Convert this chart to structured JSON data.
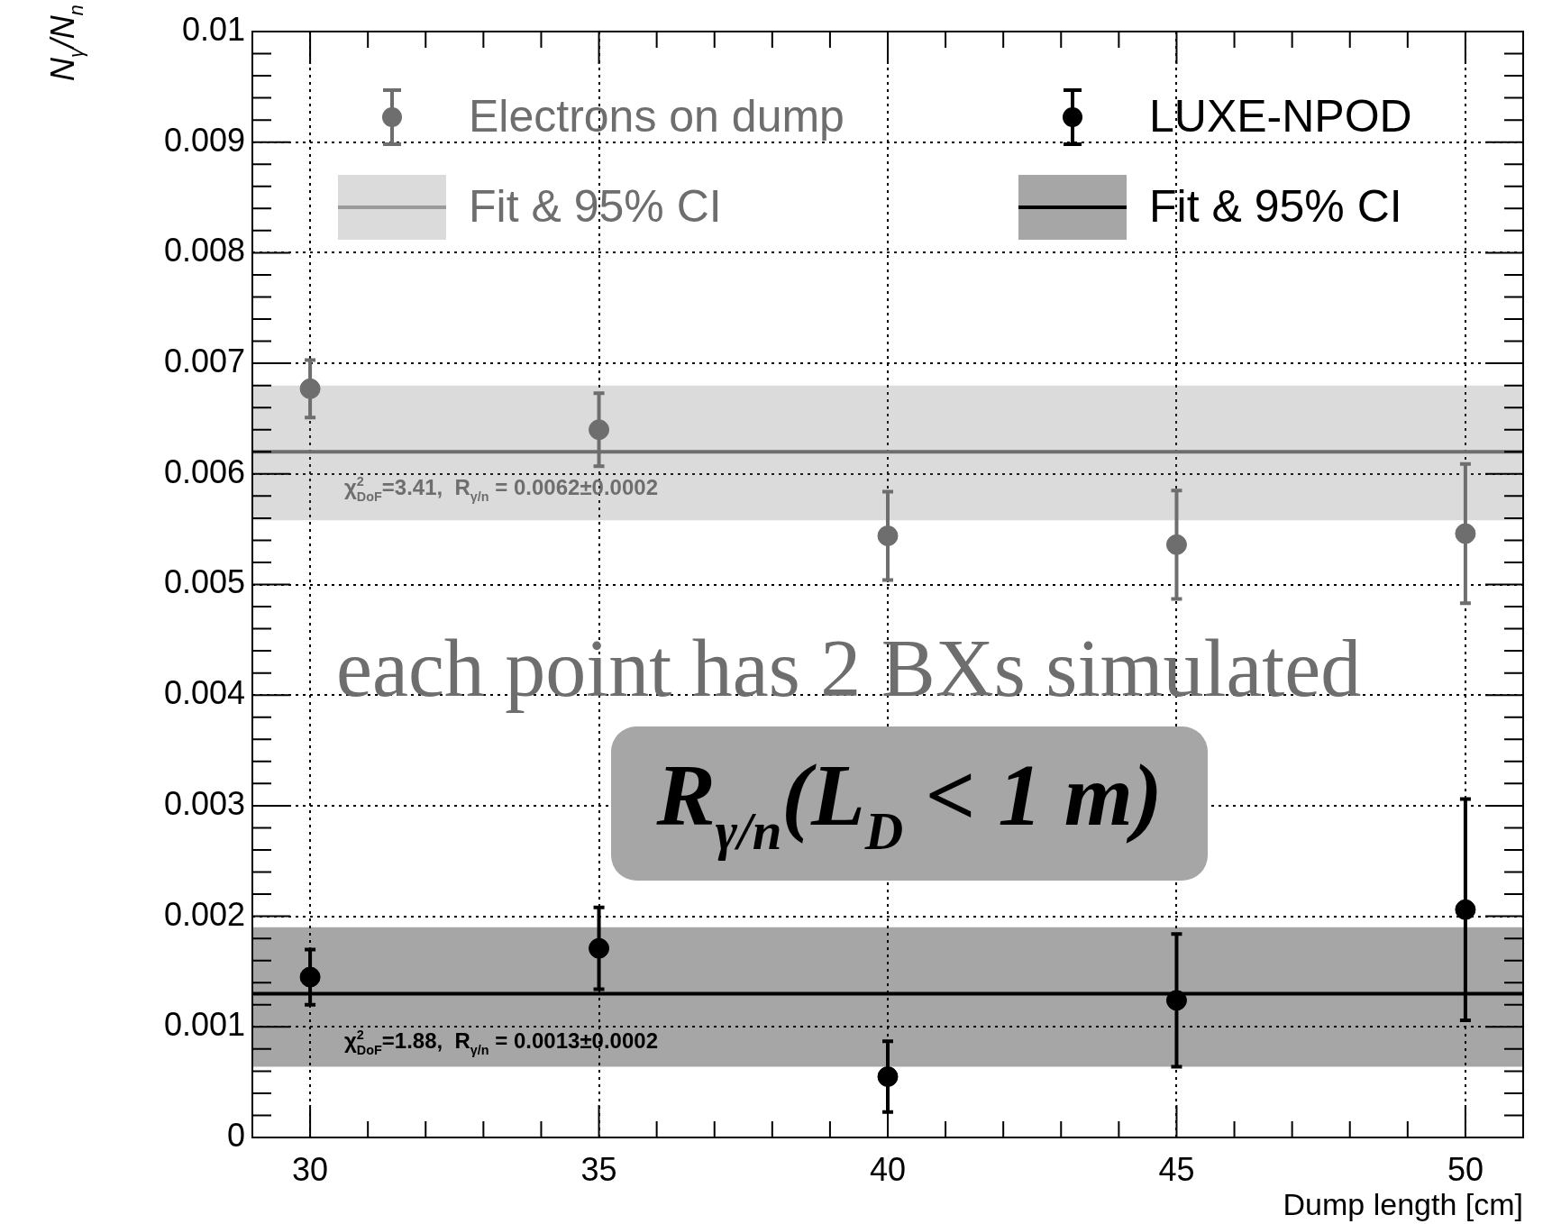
{
  "chart_data": {
    "type": "scatter",
    "xlabel": "Dump length [cm]",
    "ylabel": "N$_{γ}$/N$_{n}$",
    "xlim": [
      29,
      51
    ],
    "xticks": [
      30,
      35,
      40,
      45,
      50
    ],
    "ylim": [
      0,
      0.01
    ],
    "yticks": [
      0,
      0.001,
      0.002,
      0.003,
      0.004,
      0.005,
      0.006,
      0.007,
      0.008,
      0.009,
      0.01
    ],
    "grid": true,
    "legend": "top",
    "series": [
      {
        "name": "Electrons on dump",
        "type": "scatter",
        "marker": "circle",
        "color": "#6e6e6e",
        "x": [
          30,
          35,
          40,
          45,
          50
        ],
        "values": [
          0.00677,
          0.0064,
          0.00544,
          0.00536,
          0.00546
        ],
        "errors": [
          0.00026,
          0.00033,
          0.0004,
          0.00049,
          0.00063
        ]
      },
      {
        "name": "Fit & 95% CI",
        "type": "line",
        "color": "#6e6e6e",
        "x": [
          29,
          51
        ],
        "values": [
          0.0062,
          0.0062
        ],
        "lower": [
          0.00558,
          0.00558
        ],
        "upper": [
          0.0068,
          0.0068
        ]
      },
      {
        "name": "LUXE-NPOD",
        "type": "scatter",
        "marker": "circle",
        "color": "#000000",
        "x": [
          30,
          35,
          40,
          45,
          50
        ],
        "values": [
          0.00145,
          0.00171,
          0.00055,
          0.00124,
          0.00206
        ],
        "errors": [
          0.00025,
          0.00037,
          0.00032,
          0.0006,
          0.001
        ]
      },
      {
        "name": "Fit & 95% CI",
        "type": "line",
        "color": "#000000",
        "x": [
          29,
          51
        ],
        "values": [
          0.0013,
          0.0013
        ],
        "lower": [
          0.00064,
          0.00064
        ],
        "upper": [
          0.0019,
          0.0019
        ]
      }
    ],
    "annotations": [
      "each point has 2 BXs simulated",
      "R$_{γ/n}$(L$_{D}$ < 1 m)",
      "χ$^{2}$$_{DoF}$=3.41,  R$_{γ/n}$ = 0.0062±0.0002",
      "χ$^{2}$$_{DoF}$=1.88,  R$_{γ/n}$ = 0.0013±0.0002"
    ]
  }
}
